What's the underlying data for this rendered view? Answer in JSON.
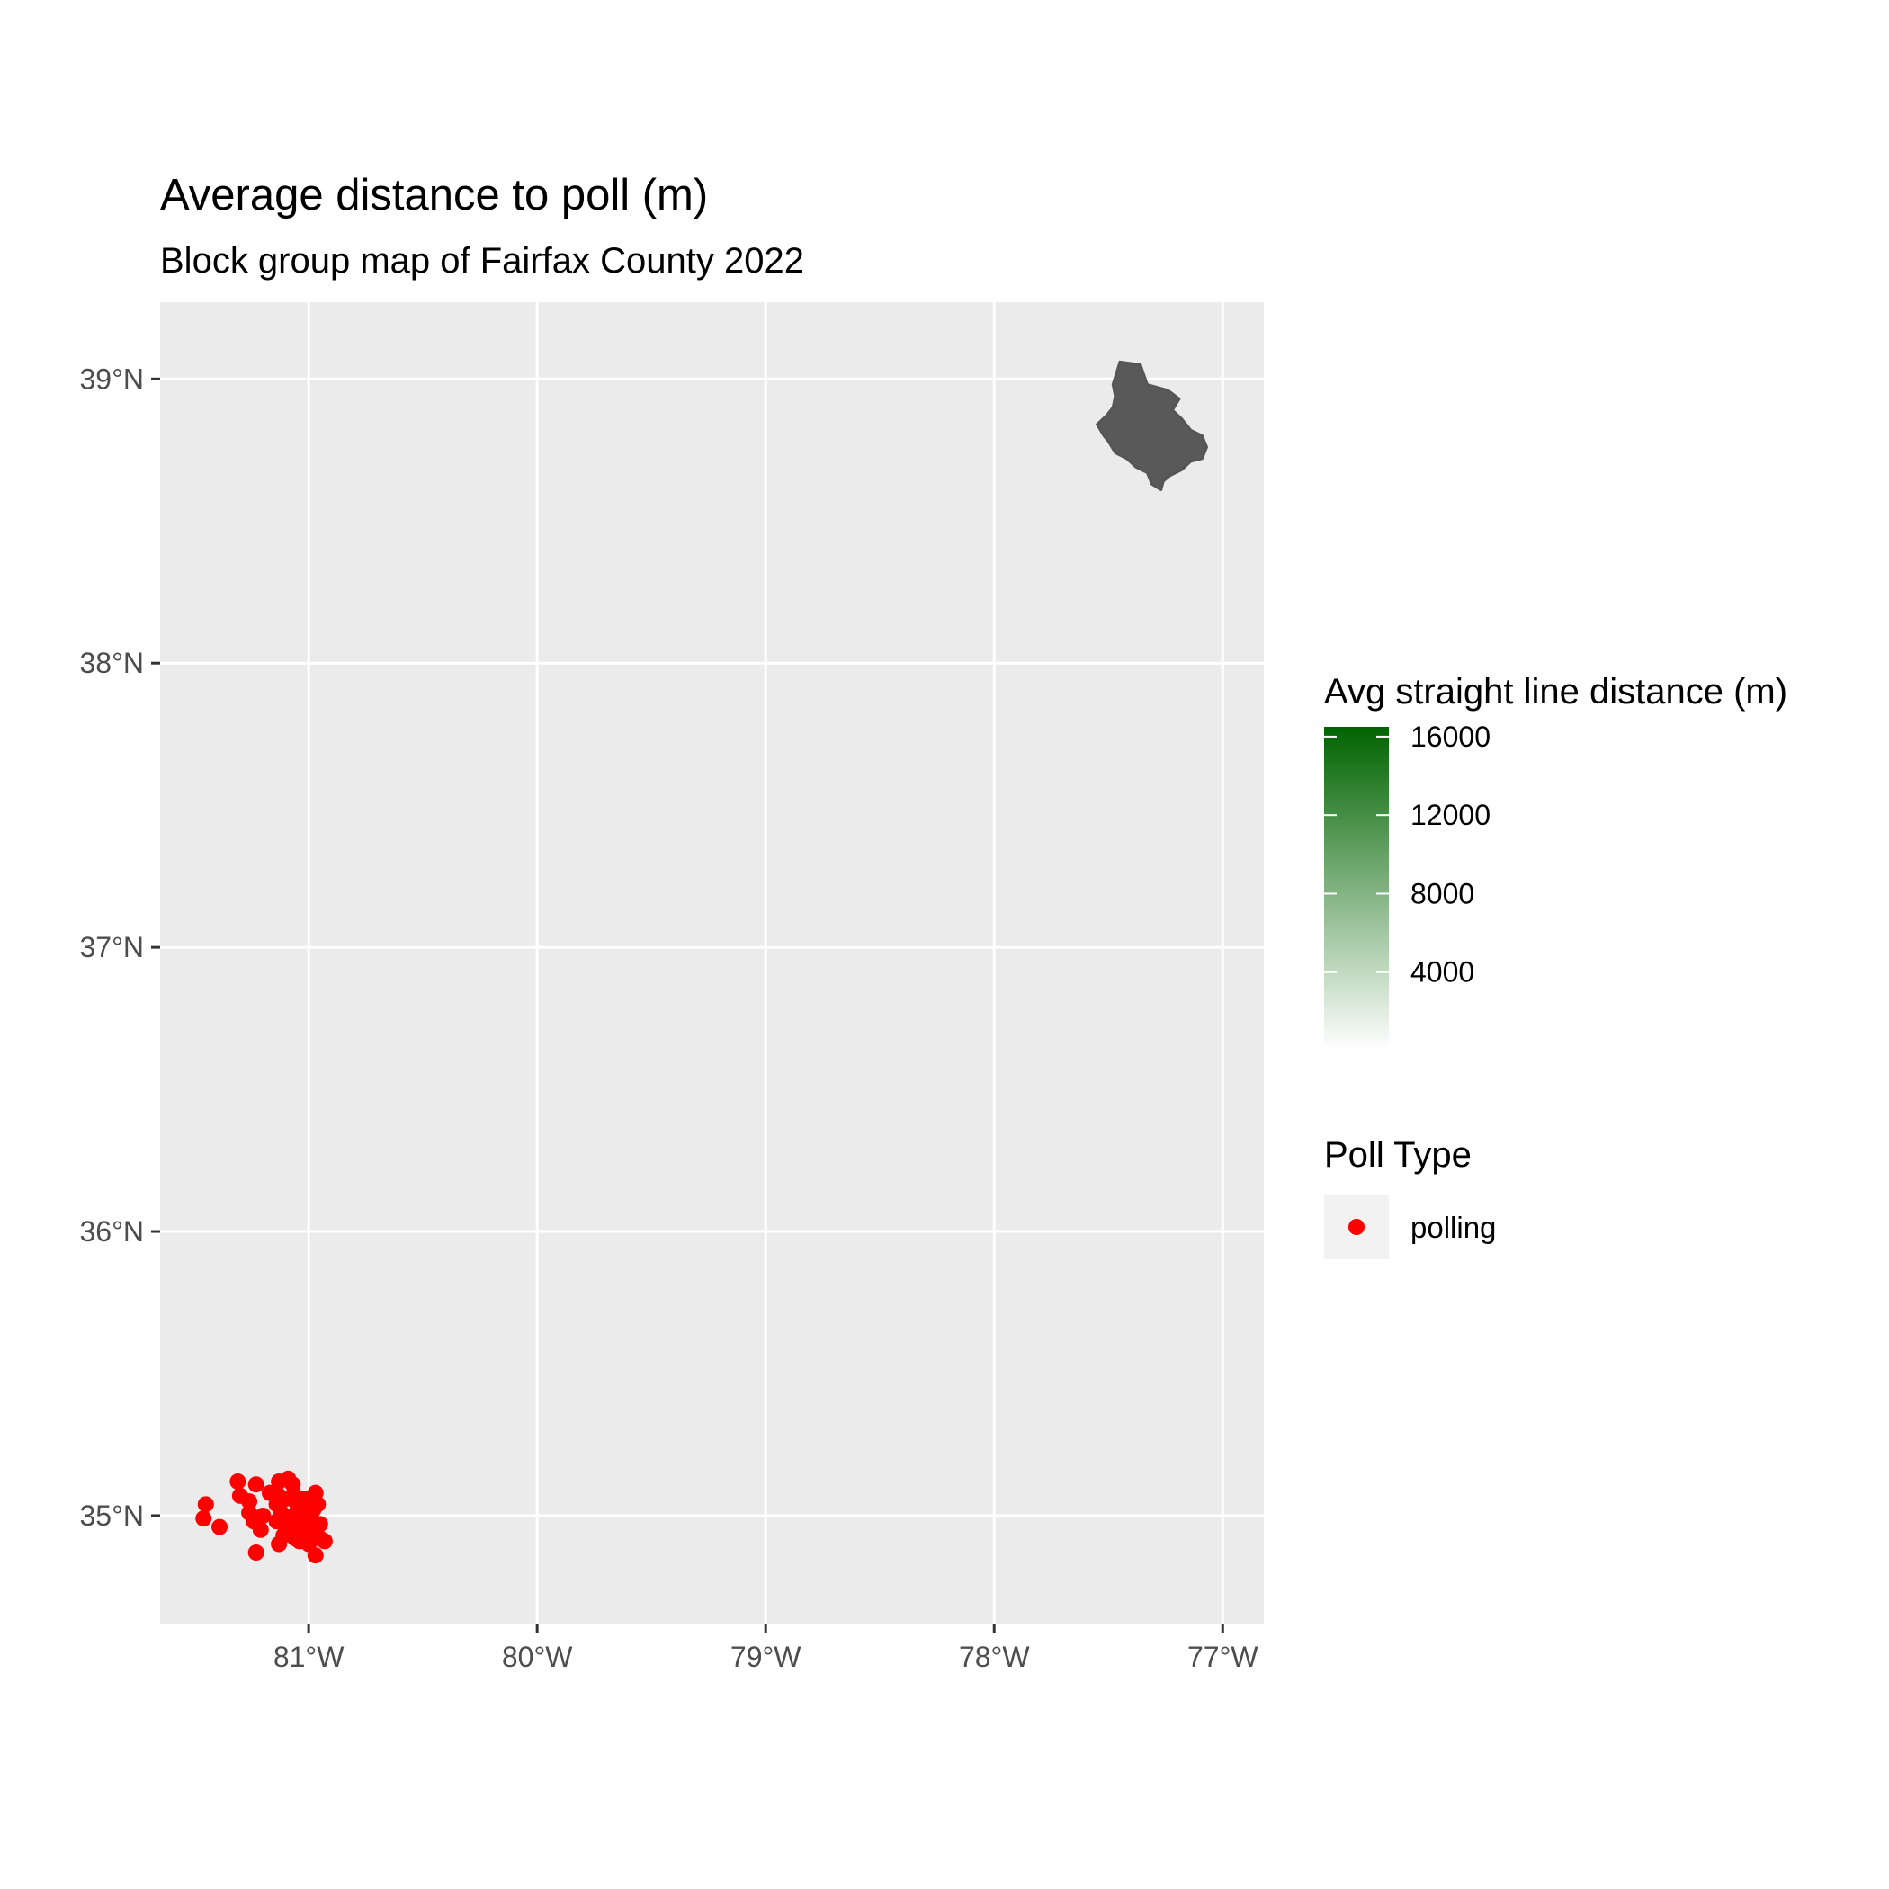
{
  "chart_data": {
    "type": "scatter",
    "title": "Average distance to poll (m)",
    "subtitle": "Block group map of Fairfax County 2022",
    "xlabel": "",
    "ylabel": "",
    "xlim": [
      -81.65,
      -76.82
    ],
    "ylim": [
      34.62,
      39.27
    ],
    "grid": true,
    "x_ticks": [
      -81,
      -80,
      -79,
      -78,
      -77
    ],
    "x_tick_labels": [
      "81°W",
      "80°W",
      "79°W",
      "78°W",
      "77°W"
    ],
    "y_ticks": [
      35,
      36,
      37,
      38,
      39
    ],
    "y_tick_labels": [
      "35°N",
      "36°N",
      "37°N",
      "38°N",
      "39°N"
    ],
    "series": [
      {
        "name": "polling",
        "color": "#ff0000",
        "x": [
          -81.31,
          -81.23,
          -81.13,
          -81.09,
          -81.07,
          -81.3,
          -81.17,
          -81.13,
          -81.1,
          -81.06,
          -81.02,
          -80.97,
          -81.26,
          -81.14,
          -81.05,
          -81.01,
          -80.99,
          -80.96,
          -81.45,
          -81.26,
          -81.2,
          -81.12,
          -81.07,
          -81.04,
          -81.0,
          -80.98,
          -81.46,
          -81.24,
          -81.14,
          -81.06,
          -81.02,
          -80.95,
          -81.39,
          -81.21,
          -81.1,
          -81.05,
          -81.01,
          -80.98,
          -81.11,
          -81.06,
          -81.02,
          -80.99,
          -80.95,
          -81.13,
          -81.04,
          -81.0,
          -80.93,
          -81.23,
          -80.97
        ],
        "y": [
          35.12,
          35.11,
          35.12,
          35.13,
          35.11,
          35.07,
          35.08,
          35.07,
          35.06,
          35.07,
          35.06,
          35.08,
          35.05,
          35.04,
          35.04,
          35.05,
          35.03,
          35.04,
          35.04,
          35.01,
          35.0,
          35.01,
          35.0,
          35.01,
          35.0,
          35.02,
          34.99,
          34.98,
          34.98,
          34.97,
          34.98,
          34.97,
          34.96,
          34.95,
          34.96,
          34.95,
          34.96,
          34.95,
          34.93,
          34.92,
          34.93,
          34.92,
          34.92,
          34.9,
          34.91,
          34.9,
          34.91,
          34.87,
          34.86
        ]
      }
    ],
    "polygon_fill": "#595959",
    "polygon_region": [
      [
        -77.45,
        39.06
      ],
      [
        -77.36,
        39.05
      ],
      [
        -77.33,
        38.98
      ],
      [
        -77.24,
        38.96
      ],
      [
        -77.19,
        38.93
      ],
      [
        -77.22,
        38.89
      ],
      [
        -77.18,
        38.86
      ],
      [
        -77.14,
        38.82
      ],
      [
        -77.09,
        38.8
      ],
      [
        -77.07,
        38.76
      ],
      [
        -77.09,
        38.72
      ],
      [
        -77.14,
        38.71
      ],
      [
        -77.18,
        38.68
      ],
      [
        -77.23,
        38.66
      ],
      [
        -77.26,
        38.64
      ],
      [
        -77.27,
        38.61
      ],
      [
        -77.31,
        38.63
      ],
      [
        -77.33,
        38.67
      ],
      [
        -77.38,
        38.69
      ],
      [
        -77.42,
        38.72
      ],
      [
        -77.47,
        38.74
      ],
      [
        -77.5,
        38.78
      ],
      [
        -77.52,
        38.8
      ],
      [
        -77.55,
        38.84
      ],
      [
        -77.51,
        38.87
      ],
      [
        -77.48,
        38.9
      ],
      [
        -77.47,
        38.94
      ],
      [
        -77.48,
        38.98
      ]
    ],
    "legend_gradient": {
      "title": "Avg straight line distance (m)",
      "low_color": "#ffffff",
      "high_color": "#006400",
      "range": [
        0,
        16500
      ],
      "ticks": [
        4000,
        8000,
        12000,
        16000
      ],
      "tick_labels": [
        "4000",
        "8000",
        "12000",
        "16000"
      ]
    },
    "legend_points": {
      "title": "Poll Type",
      "items": [
        {
          "label": "polling",
          "color": "#ff0000"
        }
      ]
    },
    "legend_placement": "right"
  }
}
